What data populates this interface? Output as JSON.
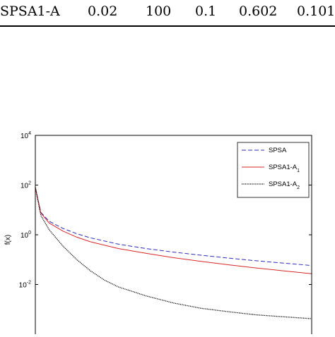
{
  "table_row": {
    "method": "SPSA1-A",
    "values": [
      "0.02",
      "100",
      "0.1",
      "0.602",
      "0.101"
    ]
  },
  "chart_data": {
    "type": "line",
    "ylabel": "f(x)",
    "y_scale": "log",
    "ylim": [
      0.0001,
      10000
    ],
    "y_ticks": [
      {
        "base": "10",
        "exp": "4"
      },
      {
        "base": "10",
        "exp": "2"
      },
      {
        "base": "10",
        "exp": "0"
      },
      {
        "base": "10",
        "exp": "-2"
      }
    ],
    "legend_position": "top-right",
    "series": [
      {
        "name": "SPSA",
        "color": "#2b2bb8",
        "style": "dashed",
        "x": [
          0,
          0.02,
          0.05,
          0.1,
          0.15,
          0.2,
          0.3,
          0.4,
          0.5,
          0.6,
          0.7,
          0.8,
          0.9,
          1.0
        ],
        "y": [
          80,
          8,
          3.5,
          1.8,
          1.1,
          0.75,
          0.42,
          0.28,
          0.2,
          0.15,
          0.115,
          0.09,
          0.072,
          0.058
        ]
      },
      {
        "name": "SPSA1-A",
        "sub": "1",
        "color": "#d62728",
        "style": "solid",
        "x": [
          0,
          0.02,
          0.05,
          0.1,
          0.15,
          0.2,
          0.3,
          0.4,
          0.5,
          0.6,
          0.7,
          0.8,
          0.9,
          1.0
        ],
        "y": [
          80,
          7.5,
          3.0,
          1.4,
          0.8,
          0.52,
          0.28,
          0.18,
          0.12,
          0.085,
          0.062,
          0.046,
          0.035,
          0.027
        ]
      },
      {
        "name": "SPSA1-A",
        "sub": "2",
        "color": "#000000",
        "style": "dotted",
        "x": [
          0,
          0.02,
          0.05,
          0.1,
          0.15,
          0.2,
          0.25,
          0.3,
          0.4,
          0.5,
          0.6,
          0.7,
          0.8,
          0.9,
          1.0
        ],
        "y": [
          80,
          6,
          1.6,
          0.35,
          0.1,
          0.035,
          0.015,
          0.008,
          0.0035,
          0.0018,
          0.0011,
          0.0008,
          0.0006,
          0.0005,
          0.00042
        ]
      }
    ]
  }
}
